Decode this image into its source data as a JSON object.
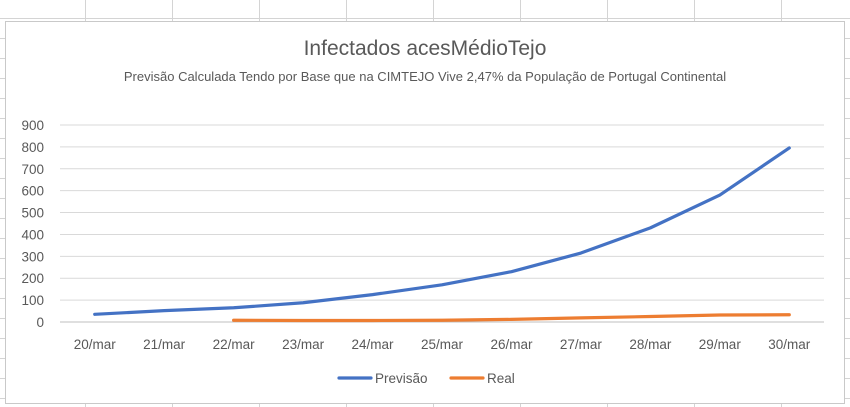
{
  "chart_data": {
    "type": "line",
    "title": "Infectados acesMédioTejo",
    "subtitle": "Previsão Calculada Tendo por Base que na CIMTEJO Vive 2,47% da População de Portugal Continental",
    "categories": [
      "20/mar",
      "21/mar",
      "22/mar",
      "23/mar",
      "24/mar",
      "25/mar",
      "26/mar",
      "27/mar",
      "28/mar",
      "29/mar",
      "30/mar"
    ],
    "ylim": [
      0,
      900
    ],
    "yticks": [
      0,
      100,
      200,
      300,
      400,
      500,
      600,
      700,
      800,
      900
    ],
    "grid": true,
    "legend_position": "bottom",
    "series": [
      {
        "name": "Previsão",
        "color": "#4472c4",
        "values": [
          35,
          52,
          65,
          88,
          125,
          170,
          230,
          315,
          430,
          580,
          795
        ]
      },
      {
        "name": "Real",
        "color": "#ed7d31",
        "values": [
          null,
          null,
          8,
          7,
          7,
          8,
          12,
          19,
          25,
          32,
          33
        ]
      }
    ]
  }
}
